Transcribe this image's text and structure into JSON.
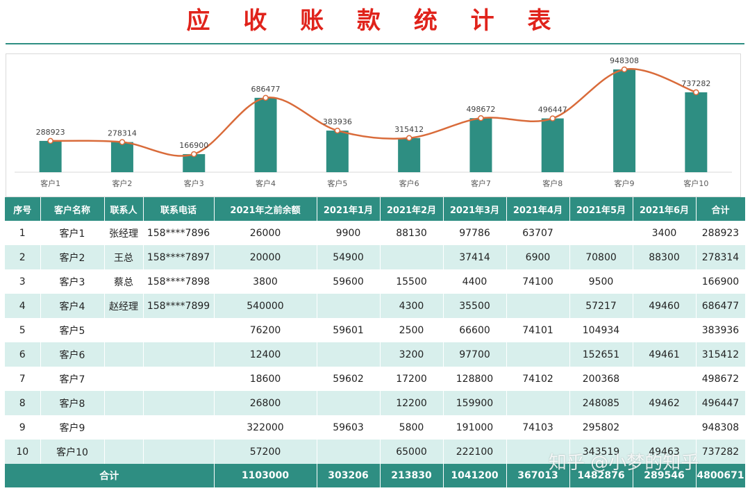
{
  "title": "应 收 账 款 统 计 表",
  "colors": {
    "accent": "#2e8e82",
    "title": "#e0231b",
    "line": "#d96b3a",
    "row_alt": "#d8efec"
  },
  "chart_data": {
    "type": "bar",
    "categories": [
      "客户1",
      "客户2",
      "客户3",
      "客户4",
      "客户5",
      "客户6",
      "客户7",
      "客户8",
      "客户9",
      "客户10"
    ],
    "values": [
      288923,
      278314,
      166900,
      686477,
      383936,
      315412,
      498672,
      496447,
      948308,
      737282
    ],
    "line_overlay": true,
    "grid": false
  },
  "table": {
    "headers": [
      "序号",
      "客户名称",
      "联系人",
      "联系电话",
      "2021年之前余额",
      "2021年1月",
      "2021年2月",
      "2021年3月",
      "2021年4月",
      "2021年5月",
      "2021年6月",
      "合计"
    ],
    "rows": [
      [
        "1",
        "客户1",
        "张经理",
        "158****7896",
        "26000",
        "9900",
        "88130",
        "97786",
        "63707",
        "",
        "3400",
        "288923"
      ],
      [
        "2",
        "客户2",
        "王总",
        "158****7897",
        "20000",
        "54900",
        "",
        "37414",
        "6900",
        "70800",
        "88300",
        "278314"
      ],
      [
        "3",
        "客户3",
        "蔡总",
        "158****7898",
        "3800",
        "59600",
        "15500",
        "4400",
        "74100",
        "9500",
        "",
        "166900"
      ],
      [
        "4",
        "客户4",
        "赵经理",
        "158****7899",
        "540000",
        "",
        "4300",
        "35500",
        "",
        "57217",
        "49460",
        "686477"
      ],
      [
        "5",
        "客户5",
        "",
        "",
        "76200",
        "59601",
        "2500",
        "66600",
        "74101",
        "104934",
        "",
        "383936"
      ],
      [
        "6",
        "客户6",
        "",
        "",
        "12400",
        "",
        "3200",
        "97700",
        "",
        "152651",
        "49461",
        "315412"
      ],
      [
        "7",
        "客户7",
        "",
        "",
        "18600",
        "59602",
        "17200",
        "128800",
        "74102",
        "200368",
        "",
        "498672"
      ],
      [
        "8",
        "客户8",
        "",
        "",
        "26800",
        "",
        "12200",
        "159900",
        "",
        "248085",
        "49462",
        "496447"
      ],
      [
        "9",
        "客户9",
        "",
        "",
        "322000",
        "59603",
        "5800",
        "191000",
        "74103",
        "295802",
        "",
        "948308"
      ],
      [
        "10",
        "客户10",
        "",
        "",
        "57200",
        "",
        "65000",
        "222100",
        "",
        "343519",
        "49463",
        "737282"
      ]
    ],
    "footer": {
      "label": "合计",
      "values": [
        "1103000",
        "303206",
        "213830",
        "1041200",
        "367013",
        "1482876",
        "289546",
        "4800671"
      ]
    }
  },
  "watermark": "知乎 @小梦的知乎"
}
